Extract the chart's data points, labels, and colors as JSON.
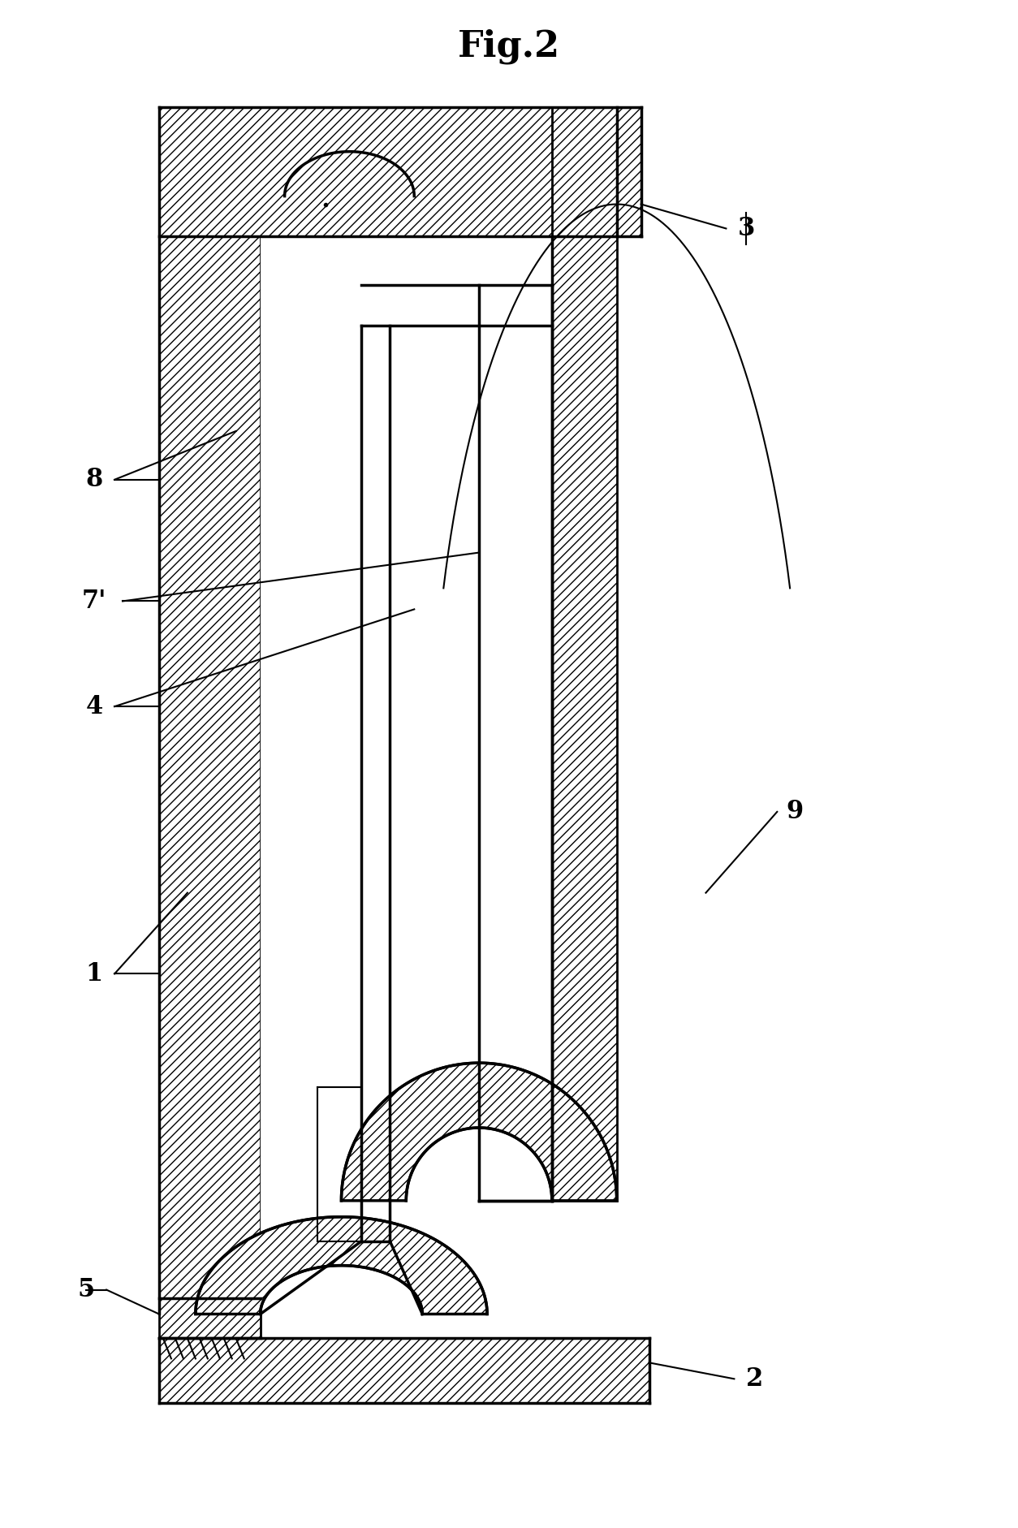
{
  "title": "Fig.2",
  "title_fontsize": 32,
  "fig_width": 12.54,
  "fig_height": 18.82,
  "background_color": "#ffffff",
  "label_fontsize": 22,
  "lw_main": 2.5,
  "lw_thin": 1.5
}
